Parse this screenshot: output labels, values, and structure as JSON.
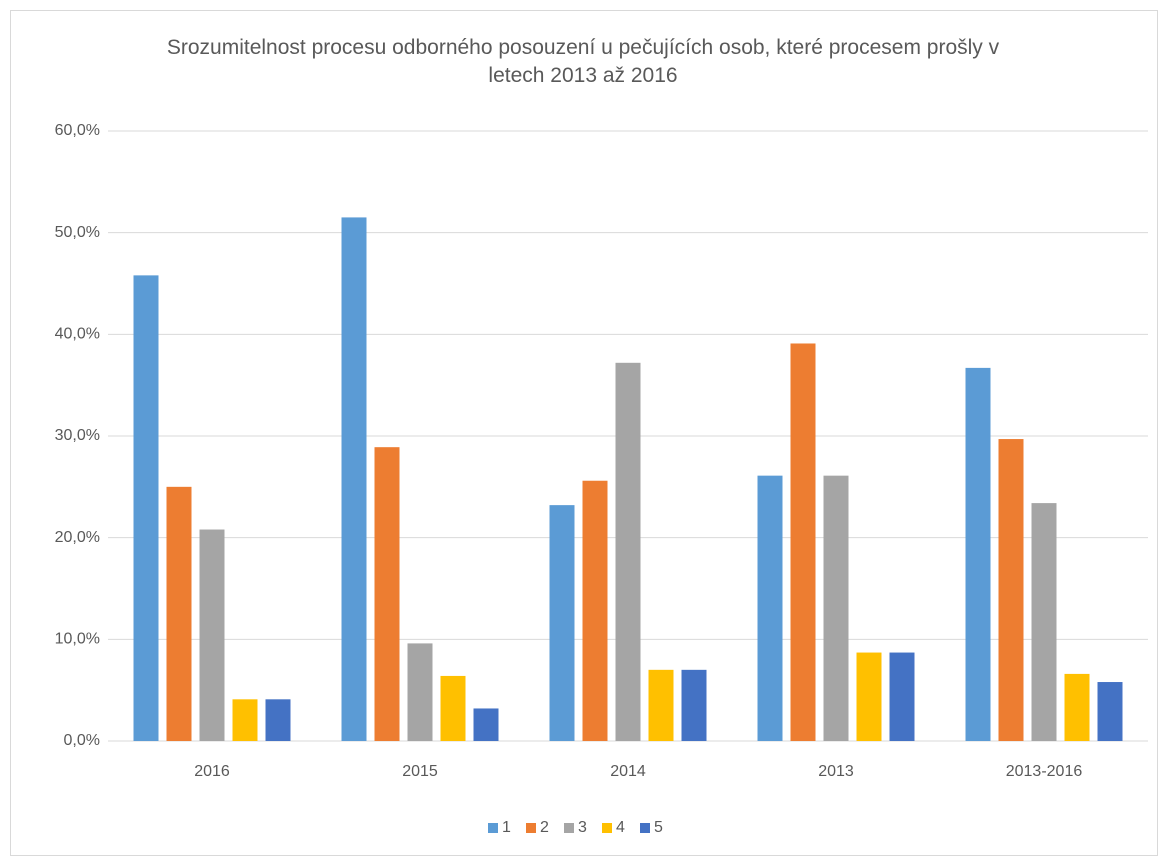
{
  "chart_data": {
    "type": "bar",
    "title": "Srozumitelnost procesu odborného posouzení u pečujících osob, které procesem prošly v letech 2013 až 2016",
    "categories": [
      "2016",
      "2015",
      "2014",
      "2013",
      "2013-2016"
    ],
    "series": [
      {
        "name": "1",
        "color": "#5b9bd5",
        "values": [
          45.8,
          51.5,
          23.2,
          26.1,
          36.7
        ]
      },
      {
        "name": "2",
        "color": "#ed7d31",
        "values": [
          25.0,
          28.9,
          25.6,
          39.1,
          29.7
        ]
      },
      {
        "name": "3",
        "color": "#a5a5a5",
        "values": [
          20.8,
          9.6,
          37.2,
          26.1,
          23.4
        ]
      },
      {
        "name": "4",
        "color": "#ffc000",
        "values": [
          4.1,
          6.4,
          7.0,
          8.7,
          6.6
        ]
      },
      {
        "name": "5",
        "color": "#4472c4",
        "values": [
          4.1,
          3.2,
          7.0,
          8.7,
          5.8
        ]
      }
    ],
    "ylim": [
      0,
      60
    ],
    "yticks": [
      {
        "value": 0,
        "label": "0,0%"
      },
      {
        "value": 10,
        "label": "10,0%"
      },
      {
        "value": 20,
        "label": "20,0%"
      },
      {
        "value": 30,
        "label": "30,0%"
      },
      {
        "value": 40,
        "label": "40,0%"
      },
      {
        "value": 50,
        "label": "50,0%"
      },
      {
        "value": 60,
        "label": "60,0%"
      }
    ],
    "grid": true,
    "legend": "bottom"
  }
}
